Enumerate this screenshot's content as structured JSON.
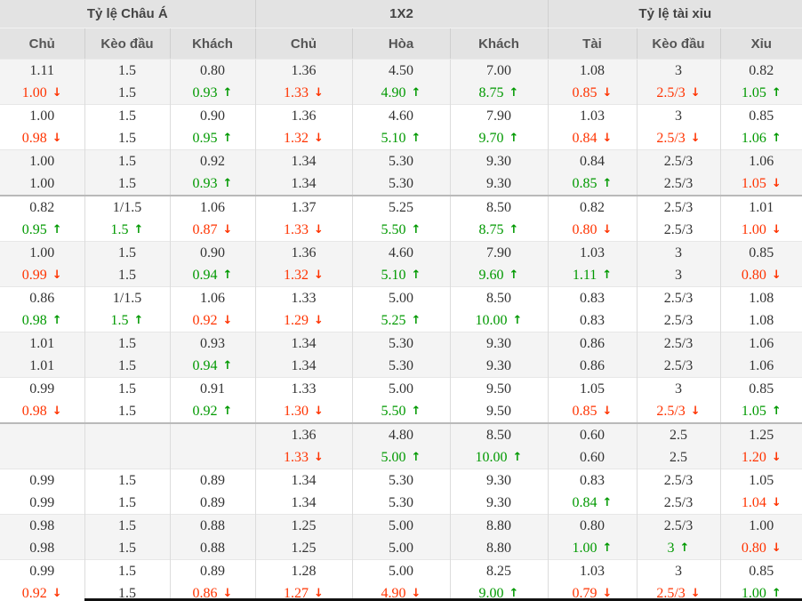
{
  "table": {
    "groups": [
      {
        "label": "Tỷ lệ Châu Á",
        "columns": [
          "Chủ",
          "Kèo đầu",
          "Khách"
        ]
      },
      {
        "label": "1X2",
        "columns": [
          "Chủ",
          "Hòa",
          "Khách"
        ]
      },
      {
        "label": "Tỷ lệ tài xỉu",
        "columns": [
          "Tài",
          "Kèo đầu",
          "Xỉu"
        ]
      }
    ],
    "icons": {
      "up": "↑",
      "down": "↓"
    },
    "colors": {
      "up": "#009900",
      "down": "#ff3300",
      "text": "#333333",
      "header_bg": "#e3e3e3",
      "alt_row_bg": "#f4f4f4"
    },
    "rows": [
      {
        "separator": false,
        "cells": [
          {
            "top": "1.11",
            "bottom": "1.00",
            "trend": "down"
          },
          {
            "top": "1.5",
            "bottom": "1.5",
            "trend": null
          },
          {
            "top": "0.80",
            "bottom": "0.93",
            "trend": "up"
          },
          {
            "top": "1.36",
            "bottom": "1.33",
            "trend": "down"
          },
          {
            "top": "4.50",
            "bottom": "4.90",
            "trend": "up"
          },
          {
            "top": "7.00",
            "bottom": "8.75",
            "trend": "up"
          },
          {
            "top": "1.08",
            "bottom": "0.85",
            "trend": "down"
          },
          {
            "top": "3",
            "bottom": "2.5/3",
            "trend": "down"
          },
          {
            "top": "0.82",
            "bottom": "1.05",
            "trend": "up"
          }
        ]
      },
      {
        "separator": false,
        "cells": [
          {
            "top": "1.00",
            "bottom": "0.98",
            "trend": "down"
          },
          {
            "top": "1.5",
            "bottom": "1.5",
            "trend": null
          },
          {
            "top": "0.90",
            "bottom": "0.95",
            "trend": "up"
          },
          {
            "top": "1.36",
            "bottom": "1.32",
            "trend": "down"
          },
          {
            "top": "4.60",
            "bottom": "5.10",
            "trend": "up"
          },
          {
            "top": "7.90",
            "bottom": "9.70",
            "trend": "up"
          },
          {
            "top": "1.03",
            "bottom": "0.84",
            "trend": "down"
          },
          {
            "top": "3",
            "bottom": "2.5/3",
            "trend": "down"
          },
          {
            "top": "0.85",
            "bottom": "1.06",
            "trend": "up"
          }
        ]
      },
      {
        "separator": false,
        "cells": [
          {
            "top": "1.00",
            "bottom": "1.00",
            "trend": null
          },
          {
            "top": "1.5",
            "bottom": "1.5",
            "trend": null
          },
          {
            "top": "0.92",
            "bottom": "0.93",
            "trend": "up"
          },
          {
            "top": "1.34",
            "bottom": "1.34",
            "trend": null
          },
          {
            "top": "5.30",
            "bottom": "5.30",
            "trend": null
          },
          {
            "top": "9.30",
            "bottom": "9.30",
            "trend": null
          },
          {
            "top": "0.84",
            "bottom": "0.85",
            "trend": "up"
          },
          {
            "top": "2.5/3",
            "bottom": "2.5/3",
            "trend": null
          },
          {
            "top": "1.06",
            "bottom": "1.05",
            "trend": "down"
          }
        ]
      },
      {
        "separator": true,
        "cells": [
          {
            "top": "0.82",
            "bottom": "0.95",
            "trend": "up"
          },
          {
            "top": "1/1.5",
            "bottom": "1.5",
            "trend": "up"
          },
          {
            "top": "1.06",
            "bottom": "0.87",
            "trend": "down"
          },
          {
            "top": "1.37",
            "bottom": "1.33",
            "trend": "down"
          },
          {
            "top": "5.25",
            "bottom": "5.50",
            "trend": "up"
          },
          {
            "top": "8.50",
            "bottom": "8.75",
            "trend": "up"
          },
          {
            "top": "0.82",
            "bottom": "0.80",
            "trend": "down"
          },
          {
            "top": "2.5/3",
            "bottom": "2.5/3",
            "trend": null
          },
          {
            "top": "1.01",
            "bottom": "1.00",
            "trend": "down"
          }
        ]
      },
      {
        "separator": false,
        "cells": [
          {
            "top": "1.00",
            "bottom": "0.99",
            "trend": "down"
          },
          {
            "top": "1.5",
            "bottom": "1.5",
            "trend": null
          },
          {
            "top": "0.90",
            "bottom": "0.94",
            "trend": "up"
          },
          {
            "top": "1.36",
            "bottom": "1.32",
            "trend": "down"
          },
          {
            "top": "4.60",
            "bottom": "5.10",
            "trend": "up"
          },
          {
            "top": "7.90",
            "bottom": "9.60",
            "trend": "up"
          },
          {
            "top": "1.03",
            "bottom": "1.11",
            "trend": "up"
          },
          {
            "top": "3",
            "bottom": "3",
            "trend": null
          },
          {
            "top": "0.85",
            "bottom": "0.80",
            "trend": "down"
          }
        ]
      },
      {
        "separator": false,
        "cells": [
          {
            "top": "0.86",
            "bottom": "0.98",
            "trend": "up"
          },
          {
            "top": "1/1.5",
            "bottom": "1.5",
            "trend": "up"
          },
          {
            "top": "1.06",
            "bottom": "0.92",
            "trend": "down"
          },
          {
            "top": "1.33",
            "bottom": "1.29",
            "trend": "down"
          },
          {
            "top": "5.00",
            "bottom": "5.25",
            "trend": "up"
          },
          {
            "top": "8.50",
            "bottom": "10.00",
            "trend": "up"
          },
          {
            "top": "0.83",
            "bottom": "0.83",
            "trend": null
          },
          {
            "top": "2.5/3",
            "bottom": "2.5/3",
            "trend": null
          },
          {
            "top": "1.08",
            "bottom": "1.08",
            "trend": null
          }
        ]
      },
      {
        "separator": false,
        "cells": [
          {
            "top": "1.01",
            "bottom": "1.01",
            "trend": null
          },
          {
            "top": "1.5",
            "bottom": "1.5",
            "trend": null
          },
          {
            "top": "0.93",
            "bottom": "0.94",
            "trend": "up"
          },
          {
            "top": "1.34",
            "bottom": "1.34",
            "trend": null
          },
          {
            "top": "5.30",
            "bottom": "5.30",
            "trend": null
          },
          {
            "top": "9.30",
            "bottom": "9.30",
            "trend": null
          },
          {
            "top": "0.86",
            "bottom": "0.86",
            "trend": null
          },
          {
            "top": "2.5/3",
            "bottom": "2.5/3",
            "trend": null
          },
          {
            "top": "1.06",
            "bottom": "1.06",
            "trend": null
          }
        ]
      },
      {
        "separator": false,
        "cells": [
          {
            "top": "0.99",
            "bottom": "0.98",
            "trend": "down"
          },
          {
            "top": "1.5",
            "bottom": "1.5",
            "trend": null
          },
          {
            "top": "0.91",
            "bottom": "0.92",
            "trend": "up"
          },
          {
            "top": "1.33",
            "bottom": "1.30",
            "trend": "down"
          },
          {
            "top": "5.00",
            "bottom": "5.50",
            "trend": "up"
          },
          {
            "top": "9.50",
            "bottom": "9.50",
            "trend": null
          },
          {
            "top": "1.05",
            "bottom": "0.85",
            "trend": "down"
          },
          {
            "top": "3",
            "bottom": "2.5/3",
            "trend": "down"
          },
          {
            "top": "0.85",
            "bottom": "1.05",
            "trend": "up"
          }
        ]
      },
      {
        "separator": true,
        "cells": [
          {
            "top": "",
            "bottom": "",
            "trend": null
          },
          {
            "top": "",
            "bottom": "",
            "trend": null
          },
          {
            "top": "",
            "bottom": "",
            "trend": null
          },
          {
            "top": "1.36",
            "bottom": "1.33",
            "trend": "down"
          },
          {
            "top": "4.80",
            "bottom": "5.00",
            "trend": "up"
          },
          {
            "top": "8.50",
            "bottom": "10.00",
            "trend": "up"
          },
          {
            "top": "0.60",
            "bottom": "0.60",
            "trend": null
          },
          {
            "top": "2.5",
            "bottom": "2.5",
            "trend": null
          },
          {
            "top": "1.25",
            "bottom": "1.20",
            "trend": "down"
          }
        ]
      },
      {
        "separator": false,
        "cells": [
          {
            "top": "0.99",
            "bottom": "0.99",
            "trend": null
          },
          {
            "top": "1.5",
            "bottom": "1.5",
            "trend": null
          },
          {
            "top": "0.89",
            "bottom": "0.89",
            "trend": null
          },
          {
            "top": "1.34",
            "bottom": "1.34",
            "trend": null
          },
          {
            "top": "5.30",
            "bottom": "5.30",
            "trend": null
          },
          {
            "top": "9.30",
            "bottom": "9.30",
            "trend": null
          },
          {
            "top": "0.83",
            "bottom": "0.84",
            "trend": "up"
          },
          {
            "top": "2.5/3",
            "bottom": "2.5/3",
            "trend": null
          },
          {
            "top": "1.05",
            "bottom": "1.04",
            "trend": "down"
          }
        ]
      },
      {
        "separator": false,
        "cells": [
          {
            "top": "0.98",
            "bottom": "0.98",
            "trend": null
          },
          {
            "top": "1.5",
            "bottom": "1.5",
            "trend": null
          },
          {
            "top": "0.88",
            "bottom": "0.88",
            "trend": null
          },
          {
            "top": "1.25",
            "bottom": "1.25",
            "trend": null
          },
          {
            "top": "5.00",
            "bottom": "5.00",
            "trend": null
          },
          {
            "top": "8.80",
            "bottom": "8.80",
            "trend": null
          },
          {
            "top": "0.80",
            "bottom": "1.00",
            "trend": "up"
          },
          {
            "top": "2.5/3",
            "bottom": "3",
            "trend": "up"
          },
          {
            "top": "1.00",
            "bottom": "0.80",
            "trend": "down"
          }
        ]
      },
      {
        "separator": false,
        "cells": [
          {
            "top": "0.99",
            "bottom": "0.92",
            "trend": "down"
          },
          {
            "top": "1.5",
            "bottom": "1.5",
            "trend": null
          },
          {
            "top": "0.89",
            "bottom": "0.86",
            "trend": "down"
          },
          {
            "top": "1.28",
            "bottom": "1.27",
            "trend": "down"
          },
          {
            "top": "5.00",
            "bottom": "4.90",
            "trend": "down"
          },
          {
            "top": "8.25",
            "bottom": "9.00",
            "trend": "up"
          },
          {
            "top": "1.03",
            "bottom": "0.79",
            "trend": "down"
          },
          {
            "top": "3",
            "bottom": "2.5/3",
            "trend": "down"
          },
          {
            "top": "0.85",
            "bottom": "1.00",
            "trend": "up"
          }
        ]
      }
    ]
  }
}
